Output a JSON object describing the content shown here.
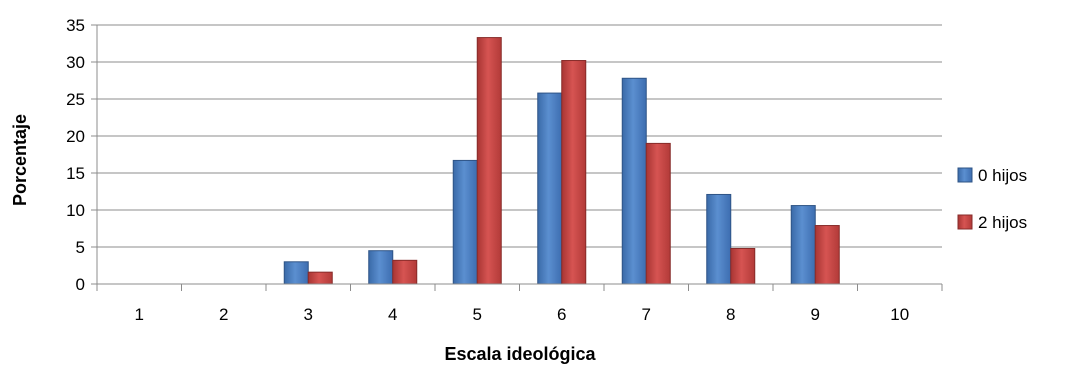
{
  "chart_data": {
    "type": "bar",
    "title": "",
    "xlabel": "Escala ideológica",
    "ylabel": "Porcentaje",
    "categories": [
      "1",
      "2",
      "3",
      "4",
      "5",
      "6",
      "7",
      "8",
      "9",
      "10"
    ],
    "series": [
      {
        "name": "0 hijos",
        "color": "#4a7ebb",
        "values": [
          0,
          0,
          3.0,
          4.5,
          16.7,
          25.8,
          27.8,
          12.1,
          10.6,
          0
        ]
      },
      {
        "name": "2 hijos",
        "color": "#c0403e",
        "values": [
          0,
          0,
          1.6,
          3.2,
          33.3,
          30.2,
          19.0,
          4.8,
          7.9,
          0
        ]
      }
    ],
    "yticks": [
      "0",
      "5",
      "10",
      "15",
      "20",
      "25",
      "30",
      "35"
    ],
    "ylim": [
      0,
      35
    ],
    "grid": true,
    "legend_position": "right"
  }
}
